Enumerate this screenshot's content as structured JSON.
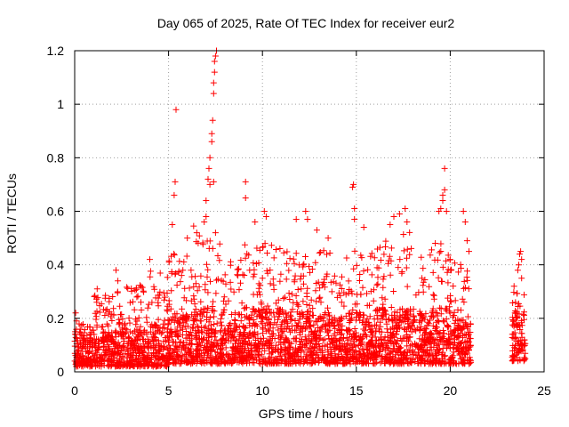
{
  "chart_data": {
    "type": "scatter",
    "title": "Day 065 of 2025, Rate Of TEC Index for receiver eur2",
    "xlabel": "GPS time / hours",
    "ylabel": "ROTI / TECUs",
    "xlim": [
      0,
      25
    ],
    "ylim": [
      0,
      1.2
    ],
    "xticks": [
      0,
      5,
      10,
      15,
      20,
      25
    ],
    "yticks": [
      0,
      0.2,
      0.4,
      0.6,
      0.8,
      1,
      1.2
    ],
    "xtick_labels": [
      "0",
      "5",
      "10",
      "15",
      "20",
      "25"
    ],
    "ytick_labels": [
      "0",
      "0.2",
      "0.4",
      "0.6",
      "0.8",
      "1",
      "1.2"
    ],
    "grid": true,
    "marker": "+",
    "color": "#ff0000",
    "bands": [
      {
        "x": [
          0.0,
          1.0
        ],
        "typical": [
          0.02,
          0.13
        ],
        "top": 0.18
      },
      {
        "x": [
          1.0,
          2.5
        ],
        "typical": [
          0.02,
          0.15
        ],
        "top": 0.3
      },
      {
        "x": [
          2.5,
          4.0
        ],
        "typical": [
          0.02,
          0.15
        ],
        "top": 0.33
      },
      {
        "x": [
          4.0,
          5.0
        ],
        "typical": [
          0.02,
          0.18
        ],
        "top": 0.38
      },
      {
        "x": [
          5.0,
          6.0
        ],
        "typical": [
          0.03,
          0.22
        ],
        "top": 0.45
      },
      {
        "x": [
          6.0,
          7.0
        ],
        "typical": [
          0.03,
          0.24
        ],
        "top": 0.55
      },
      {
        "x": [
          7.0,
          8.0
        ],
        "typical": [
          0.03,
          0.24
        ],
        "top": 0.5
      },
      {
        "x": [
          8.0,
          9.0
        ],
        "typical": [
          0.03,
          0.22
        ],
        "top": 0.42
      },
      {
        "x": [
          9.0,
          10.0
        ],
        "typical": [
          0.03,
          0.24
        ],
        "top": 0.48
      },
      {
        "x": [
          10.0,
          11.0
        ],
        "typical": [
          0.03,
          0.24
        ],
        "top": 0.5
      },
      {
        "x": [
          11.0,
          12.0
        ],
        "typical": [
          0.03,
          0.22
        ],
        "top": 0.45
      },
      {
        "x": [
          12.0,
          13.0
        ],
        "typical": [
          0.03,
          0.22
        ],
        "top": 0.45
      },
      {
        "x": [
          13.0,
          14.0
        ],
        "typical": [
          0.03,
          0.22
        ],
        "top": 0.47
      },
      {
        "x": [
          14.0,
          15.0
        ],
        "typical": [
          0.03,
          0.22
        ],
        "top": 0.47
      },
      {
        "x": [
          15.0,
          16.0
        ],
        "typical": [
          0.03,
          0.22
        ],
        "top": 0.45
      },
      {
        "x": [
          16.0,
          17.0
        ],
        "typical": [
          0.03,
          0.24
        ],
        "top": 0.5
      },
      {
        "x": [
          17.0,
          18.0
        ],
        "typical": [
          0.03,
          0.24
        ],
        "top": 0.55
      },
      {
        "x": [
          18.0,
          19.0
        ],
        "typical": [
          0.03,
          0.22
        ],
        "top": 0.45
      },
      {
        "x": [
          19.0,
          20.0
        ],
        "typical": [
          0.03,
          0.24
        ],
        "top": 0.5
      },
      {
        "x": [
          20.0,
          21.0
        ],
        "typical": [
          0.03,
          0.2
        ],
        "top": 0.42
      },
      {
        "x": [
          21.0,
          21.1
        ],
        "typical": [
          0.03,
          0.12
        ],
        "top": 0.18
      },
      {
        "x": [
          23.3,
          24.0
        ],
        "typical": [
          0.04,
          0.22
        ],
        "top": 0.3
      }
    ],
    "highlights": [
      {
        "x": 0.05,
        "y": 0.22
      },
      {
        "x": 0.1,
        "y": 0.19
      },
      {
        "x": 1.2,
        "y": 0.31
      },
      {
        "x": 2.2,
        "y": 0.38
      },
      {
        "x": 2.3,
        "y": 0.34
      },
      {
        "x": 4.0,
        "y": 0.42
      },
      {
        "x": 5.2,
        "y": 0.55
      },
      {
        "x": 5.3,
        "y": 0.66
      },
      {
        "x": 5.35,
        "y": 0.71
      },
      {
        "x": 5.4,
        "y": 0.98
      },
      {
        "x": 6.0,
        "y": 0.5
      },
      {
        "x": 6.5,
        "y": 0.52
      },
      {
        "x": 6.9,
        "y": 0.56
      },
      {
        "x": 7.0,
        "y": 0.58
      },
      {
        "x": 7.0,
        "y": 0.64
      },
      {
        "x": 7.1,
        "y": 0.72
      },
      {
        "x": 7.15,
        "y": 0.76
      },
      {
        "x": 7.2,
        "y": 0.8
      },
      {
        "x": 7.2,
        "y": 0.7
      },
      {
        "x": 7.3,
        "y": 0.86
      },
      {
        "x": 7.3,
        "y": 0.89
      },
      {
        "x": 7.35,
        "y": 0.94
      },
      {
        "x": 7.4,
        "y": 1.04
      },
      {
        "x": 7.4,
        "y": 1.08
      },
      {
        "x": 7.45,
        "y": 1.12
      },
      {
        "x": 7.45,
        "y": 1.16
      },
      {
        "x": 7.5,
        "y": 1.18
      },
      {
        "x": 7.55,
        "y": 1.2
      },
      {
        "x": 7.4,
        "y": 0.71
      },
      {
        "x": 7.5,
        "y": 0.52
      },
      {
        "x": 9.1,
        "y": 0.71
      },
      {
        "x": 9.1,
        "y": 0.65
      },
      {
        "x": 9.6,
        "y": 0.56
      },
      {
        "x": 10.1,
        "y": 0.6
      },
      {
        "x": 10.2,
        "y": 0.58
      },
      {
        "x": 11.8,
        "y": 0.57
      },
      {
        "x": 12.3,
        "y": 0.6
      },
      {
        "x": 12.4,
        "y": 0.57
      },
      {
        "x": 12.9,
        "y": 0.53
      },
      {
        "x": 13.5,
        "y": 0.5
      },
      {
        "x": 14.8,
        "y": 0.69
      },
      {
        "x": 14.85,
        "y": 0.7
      },
      {
        "x": 14.9,
        "y": 0.61
      },
      {
        "x": 14.9,
        "y": 0.57
      },
      {
        "x": 15.4,
        "y": 0.54
      },
      {
        "x": 16.8,
        "y": 0.55
      },
      {
        "x": 17.0,
        "y": 0.58
      },
      {
        "x": 17.3,
        "y": 0.59
      },
      {
        "x": 17.6,
        "y": 0.61
      },
      {
        "x": 17.7,
        "y": 0.56
      },
      {
        "x": 19.4,
        "y": 0.6
      },
      {
        "x": 19.5,
        "y": 0.61
      },
      {
        "x": 19.6,
        "y": 0.64
      },
      {
        "x": 19.6,
        "y": 0.66
      },
      {
        "x": 19.7,
        "y": 0.68
      },
      {
        "x": 19.7,
        "y": 0.76
      },
      {
        "x": 19.8,
        "y": 0.6
      },
      {
        "x": 20.7,
        "y": 0.6
      },
      {
        "x": 20.8,
        "y": 0.56
      },
      {
        "x": 20.9,
        "y": 0.49
      },
      {
        "x": 21.0,
        "y": 0.45
      },
      {
        "x": 23.4,
        "y": 0.32
      },
      {
        "x": 23.6,
        "y": 0.38
      },
      {
        "x": 23.65,
        "y": 0.4
      },
      {
        "x": 23.7,
        "y": 0.44
      },
      {
        "x": 23.75,
        "y": 0.45
      },
      {
        "x": 23.8,
        "y": 0.42
      },
      {
        "x": 23.8,
        "y": 0.35
      }
    ]
  }
}
